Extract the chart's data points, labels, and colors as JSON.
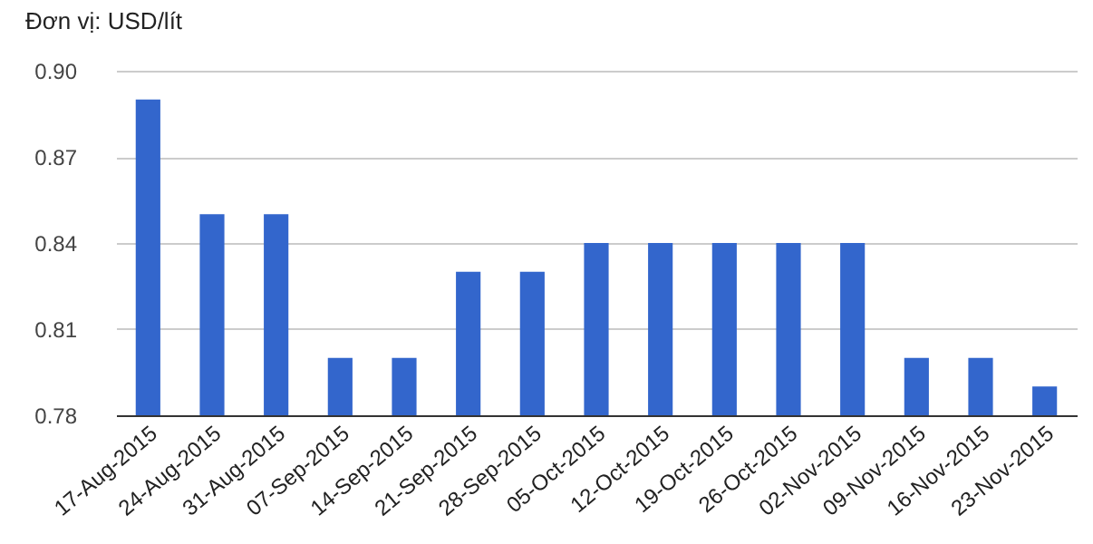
{
  "chart_data": {
    "type": "bar",
    "title": "Đơn vị: USD/lít",
    "categories": [
      "17-Aug-2015",
      "24-Aug-2015",
      "31-Aug-2015",
      "07-Sep-2015",
      "14-Sep-2015",
      "21-Sep-2015",
      "28-Sep-2015",
      "05-Oct-2015",
      "12-Oct-2015",
      "19-Oct-2015",
      "26-Oct-2015",
      "02-Nov-2015",
      "09-Nov-2015",
      "16-Nov-2015",
      "23-Nov-2015"
    ],
    "values": [
      0.89,
      0.85,
      0.85,
      0.8,
      0.8,
      0.83,
      0.83,
      0.84,
      0.84,
      0.84,
      0.84,
      0.84,
      0.8,
      0.8,
      0.79
    ],
    "color": "#3366cc",
    "ylim": [
      0.78,
      0.9
    ],
    "yticks": [
      0.78,
      0.81,
      0.84,
      0.87,
      {
        "value": 0.9,
        "label": "0.90"
      }
    ],
    "grid": "y"
  }
}
